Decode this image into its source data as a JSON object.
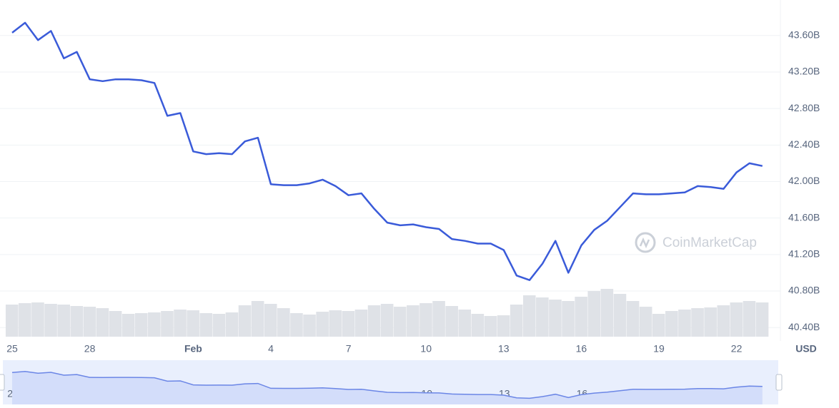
{
  "chart_data": {
    "type": "line",
    "categories": [
      "25",
      null,
      null,
      null,
      null,
      null,
      "28",
      null,
      null,
      null,
      null,
      null,
      null,
      null,
      "Feb",
      null,
      null,
      null,
      null,
      null,
      "4",
      null,
      null,
      null,
      null,
      null,
      "7",
      null,
      null,
      null,
      null,
      null,
      "10",
      null,
      null,
      null,
      null,
      null,
      "13",
      null,
      null,
      null,
      null,
      null,
      "16",
      null,
      null,
      null,
      null,
      null,
      "19",
      null,
      null,
      null,
      null,
      null,
      "22",
      null,
      null
    ],
    "values": [
      43630000000,
      43740000000,
      43550000000,
      43650000000,
      43350000000,
      43420000000,
      43120000000,
      43100000000,
      43120000000,
      43120000000,
      43110000000,
      43080000000,
      42720000000,
      42750000000,
      42330000000,
      42300000000,
      42310000000,
      42300000000,
      42440000000,
      42480000000,
      41970000000,
      41960000000,
      41960000000,
      41980000000,
      42020000000,
      41950000000,
      41850000000,
      41870000000,
      41700000000,
      41550000000,
      41520000000,
      41530000000,
      41500000000,
      41480000000,
      41370000000,
      41350000000,
      41320000000,
      41320000000,
      41250000000,
      40970000000,
      40920000000,
      41100000000,
      41350000000,
      41000000000,
      41300000000,
      41470000000,
      41570000000,
      41720000000,
      41870000000,
      41860000000,
      41860000000,
      41870000000,
      41880000000,
      41950000000,
      41940000000,
      41920000000,
      42100000000,
      42200000000,
      42170000000
    ],
    "color": "#3a5bd9",
    "volume": [
      45,
      47,
      48,
      46,
      45,
      43,
      42,
      40,
      36,
      32,
      33,
      34,
      36,
      38,
      37,
      33,
      32,
      34,
      44,
      50,
      46,
      40,
      33,
      31,
      35,
      37,
      36,
      38,
      44,
      46,
      42,
      44,
      47,
      50,
      43,
      38,
      32,
      29,
      30,
      45,
      58,
      55,
      52,
      50,
      56,
      64,
      67,
      60,
      50,
      42,
      32,
      36,
      38,
      40,
      41,
      44,
      48,
      50,
      48
    ],
    "volume_color": "#dfe2e7",
    "y2lim": [
      0,
      100
    ],
    "ylim": [
      40300000000,
      43950000000
    ],
    "yticks": [
      {
        "value": 40400000000,
        "label": "40.40B"
      },
      {
        "value": 40800000000,
        "label": "40.80B"
      },
      {
        "value": 41200000000,
        "label": "41.20B"
      },
      {
        "value": 41600000000,
        "label": "41.60B"
      },
      {
        "value": 42000000000,
        "label": "42.00B"
      },
      {
        "value": 42400000000,
        "label": "42.40B"
      },
      {
        "value": 42800000000,
        "label": "42.80B"
      },
      {
        "value": 43200000000,
        "label": "43.20B"
      },
      {
        "value": 43600000000,
        "label": "43.60B"
      }
    ],
    "grid": true,
    "currency": "USD",
    "watermark": "CoinMarketCap"
  }
}
